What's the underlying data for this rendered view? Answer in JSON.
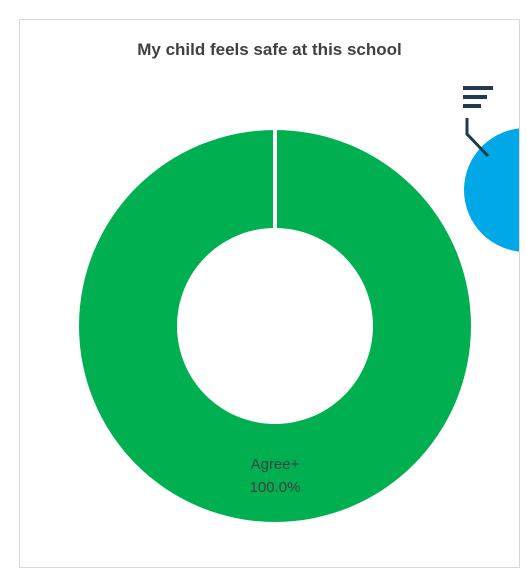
{
  "chart_data": {
    "type": "pie",
    "title": "My child feels safe at this school",
    "slices": [
      {
        "label": "Agree+",
        "value": 100.0,
        "display": "100.0%",
        "color": "#00b050"
      }
    ],
    "hole": "donut",
    "legend": "none"
  },
  "colors": {
    "filter_icon": "#1f3b4d",
    "peek_chart": "#00a8e8"
  },
  "icons": {
    "filter": "filter-lines-icon"
  }
}
